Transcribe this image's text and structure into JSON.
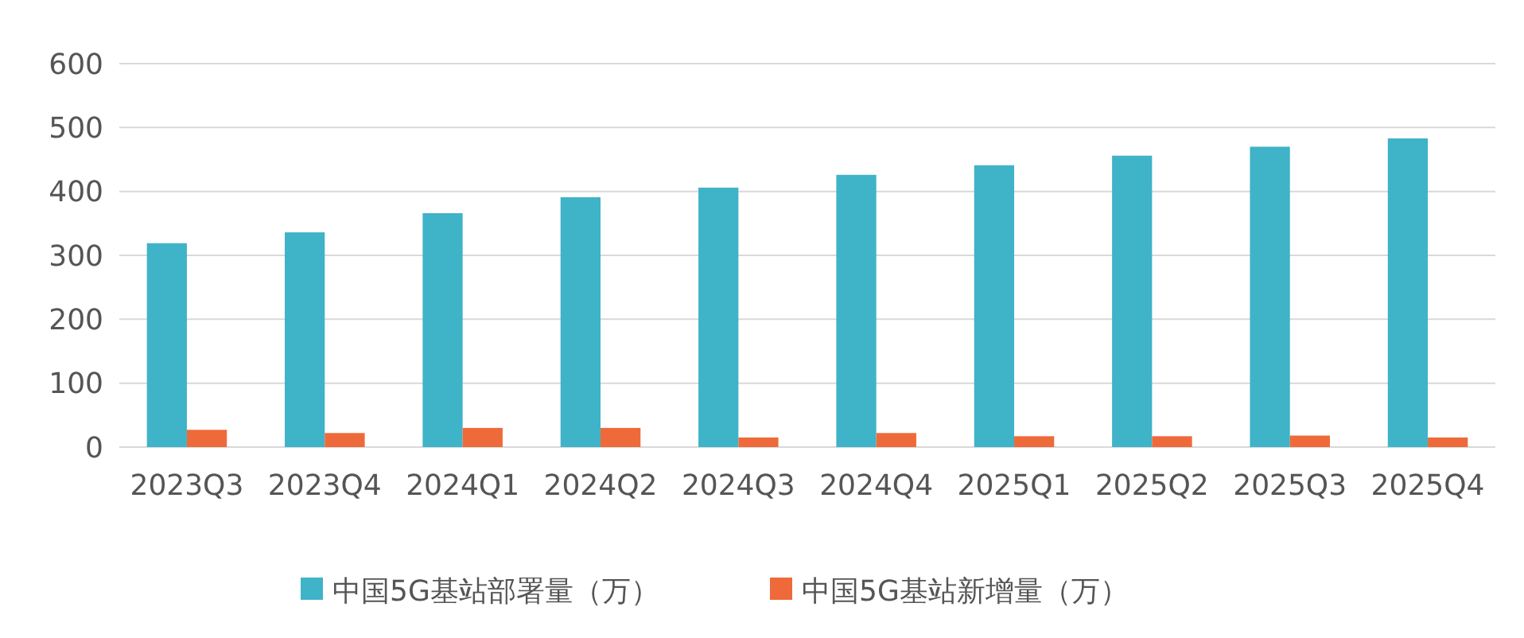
{
  "chart_data": {
    "type": "bar",
    "categories": [
      "2023Q3",
      "2023Q4",
      "2024Q1",
      "2024Q2",
      "2024Q3",
      "2024Q4",
      "2025Q1",
      "2025Q2",
      "2025Q3",
      "2025Q4"
    ],
    "series": [
      {
        "name": "中国5G基站部署量（万）",
        "color": "#3fb3c8",
        "values": [
          319,
          336,
          366,
          391,
          406,
          426,
          441,
          456,
          470,
          483
        ]
      },
      {
        "name": "中国5G基站新增量（万）",
        "color": "#ee6a3a",
        "values": [
          27,
          22,
          30,
          30,
          15,
          22,
          17,
          17,
          18,
          15
        ]
      }
    ],
    "ylim": [
      0,
      600
    ],
    "yticks": [
      0,
      100,
      200,
      300,
      400,
      500,
      600
    ],
    "grid": "y",
    "legend": "bottom"
  }
}
